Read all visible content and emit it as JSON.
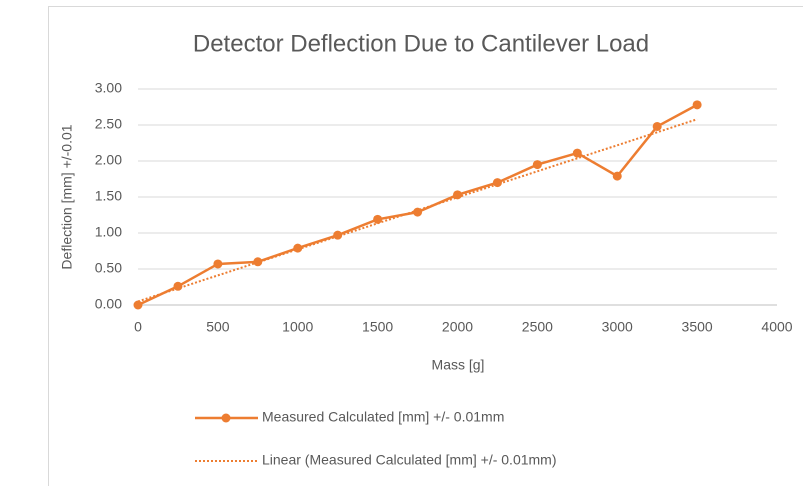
{
  "chart_data": {
    "type": "line",
    "title": "Detector Deflection Due to Cantilever Load",
    "x_label": "Mass [g]",
    "y_label": "Deflection [mm] +/-0.01",
    "x": [
      0,
      250,
      500,
      750,
      1000,
      1250,
      1500,
      1750,
      2000,
      2250,
      2500,
      2750,
      3000,
      3250,
      3500
    ],
    "series": [
      {
        "name": "Measured Calculated [mm] +/- 0.01mm",
        "color": "#ed7d31",
        "values": [
          0.0,
          0.26,
          0.57,
          0.6,
          0.79,
          0.97,
          1.19,
          1.29,
          1.53,
          1.7,
          1.95,
          2.11,
          1.79,
          2.48,
          2.78
        ]
      },
      {
        "name": "Linear (Measured Calculated [mm] +/- 0.01mm)",
        "color": "#ed7d31",
        "style": "dotted",
        "x": [
          0,
          3500
        ],
        "values": [
          0.05,
          2.58
        ]
      }
    ],
    "xlim": [
      0,
      4000
    ],
    "xticks": [
      0,
      500,
      1000,
      1500,
      2000,
      2500,
      3000,
      3500,
      4000
    ],
    "ylim": [
      0,
      3
    ],
    "yticks": [
      {
        "value": 0,
        "label": "0.00"
      },
      {
        "value": 0.5,
        "label": "0.50"
      },
      {
        "value": 1,
        "label": "1.00"
      },
      {
        "value": 1.5,
        "label": "1.50"
      },
      {
        "value": 2,
        "label": "2.00"
      },
      {
        "value": 2.5,
        "label": "2.50"
      },
      {
        "value": 3,
        "label": "3.00"
      }
    ],
    "grid": true,
    "legend": "bottom"
  }
}
